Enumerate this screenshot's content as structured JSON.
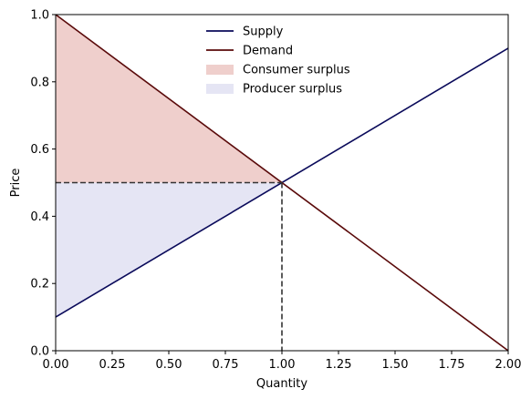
{
  "chart_data": {
    "type": "line",
    "xlabel": "Quantity",
    "ylabel": "Price",
    "xlim": [
      0,
      2
    ],
    "ylim": [
      0,
      1
    ],
    "xticks": [
      "0.00",
      "0.25",
      "0.50",
      "0.75",
      "1.00",
      "1.25",
      "1.50",
      "1.75",
      "2.00"
    ],
    "yticks": [
      "0.0",
      "0.2",
      "0.4",
      "0.6",
      "0.8",
      "1.0"
    ],
    "grid": false,
    "legend_position": "top-center",
    "series": [
      {
        "name": "Supply",
        "color": "#0a0a5a",
        "x": [
          0,
          2
        ],
        "y": [
          0.1,
          0.9
        ]
      },
      {
        "name": "Demand",
        "color": "#5a0a0a",
        "x": [
          0,
          2
        ],
        "y": [
          1.0,
          0.0
        ]
      }
    ],
    "areas": [
      {
        "name": "Consumer surplus",
        "color": "#efcfcc",
        "points": [
          [
            0,
            1.0
          ],
          [
            1.0,
            0.5
          ],
          [
            0,
            0.5
          ]
        ]
      },
      {
        "name": "Producer surplus",
        "color": "#e5e5f4",
        "points": [
          [
            0,
            0.5
          ],
          [
            1.0,
            0.5
          ],
          [
            0,
            0.1
          ]
        ]
      }
    ],
    "equilibrium": {
      "x": 1.0,
      "y": 0.5,
      "line_color": "#333333"
    }
  }
}
